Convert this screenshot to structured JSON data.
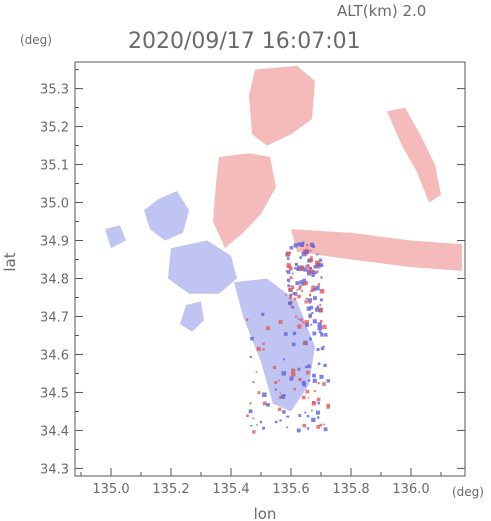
{
  "header": {
    "altitude_label": "ALT(km) 2.0",
    "timestamp": "2020/09/17 16:07:01"
  },
  "axes": {
    "y_unit": "(deg)",
    "x_unit": "(deg)",
    "x_title": "lon",
    "y_title": "lat"
  },
  "colors": {
    "frame": "#555555",
    "text": "#6a6a6a",
    "positive": "#f2a3a3",
    "negative": "#a9b0ef",
    "strong_positive": "#e65a5a",
    "strong_negative": "#5a64e0"
  },
  "chart_data": {
    "type": "heatmap",
    "title": "",
    "xlabel": "lon",
    "ylabel": "lat",
    "xlim": [
      134.88,
      136.18
    ],
    "ylim": [
      34.28,
      35.37
    ],
    "x_ticks": [
      "135.0",
      "135.2",
      "135.4",
      "135.6",
      "135.8",
      "136.0"
    ],
    "y_ticks": [
      "34.3",
      "34.4",
      "34.5",
      "34.6",
      "34.7",
      "34.8",
      "34.9",
      "35.0",
      "35.1",
      "35.2",
      "35.3"
    ],
    "grid": false,
    "regions": [
      {
        "name": "north-positive-plume",
        "sign": "positive",
        "polygon": [
          [
            135.48,
            35.35
          ],
          [
            135.62,
            35.36
          ],
          [
            135.68,
            35.32
          ],
          [
            135.67,
            35.22
          ],
          [
            135.6,
            35.18
          ],
          [
            135.52,
            35.15
          ],
          [
            135.47,
            35.18
          ],
          [
            135.46,
            35.28
          ]
        ]
      },
      {
        "name": "central-positive-band",
        "sign": "positive",
        "polygon": [
          [
            135.36,
            35.12
          ],
          [
            135.46,
            35.13
          ],
          [
            135.53,
            35.12
          ],
          [
            135.55,
            35.04
          ],
          [
            135.5,
            34.97
          ],
          [
            135.44,
            34.92
          ],
          [
            135.38,
            34.88
          ],
          [
            135.34,
            34.95
          ],
          [
            135.35,
            35.05
          ]
        ]
      },
      {
        "name": "east-positive-streak",
        "sign": "positive",
        "polygon": [
          [
            135.6,
            34.93
          ],
          [
            135.8,
            34.92
          ],
          [
            136.0,
            34.9
          ],
          [
            136.17,
            34.89
          ],
          [
            136.17,
            34.82
          ],
          [
            136.0,
            34.83
          ],
          [
            135.8,
            34.85
          ],
          [
            135.62,
            34.87
          ]
        ]
      },
      {
        "name": "northeast-positive-arc",
        "sign": "positive",
        "polygon": [
          [
            135.92,
            35.24
          ],
          [
            135.98,
            35.25
          ],
          [
            136.03,
            35.18
          ],
          [
            136.08,
            35.1
          ],
          [
            136.1,
            35.02
          ],
          [
            136.06,
            35.0
          ],
          [
            136.02,
            35.08
          ],
          [
            135.97,
            35.15
          ]
        ]
      },
      {
        "name": "west-negative-blob",
        "sign": "negative",
        "polygon": [
          [
            135.16,
            35.01
          ],
          [
            135.22,
            35.03
          ],
          [
            135.26,
            34.98
          ],
          [
            135.24,
            34.92
          ],
          [
            135.18,
            34.9
          ],
          [
            135.13,
            34.93
          ],
          [
            135.11,
            34.98
          ]
        ]
      },
      {
        "name": "central-negative-blob",
        "sign": "negative",
        "polygon": [
          [
            135.2,
            34.88
          ],
          [
            135.32,
            34.9
          ],
          [
            135.4,
            34.86
          ],
          [
            135.42,
            34.8
          ],
          [
            135.36,
            34.76
          ],
          [
            135.26,
            34.76
          ],
          [
            135.19,
            34.8
          ]
        ]
      },
      {
        "name": "southwest-negative-blob",
        "sign": "negative",
        "polygon": [
          [
            135.25,
            34.73
          ],
          [
            135.3,
            34.74
          ],
          [
            135.31,
            34.69
          ],
          [
            135.27,
            34.66
          ],
          [
            135.23,
            34.68
          ]
        ]
      },
      {
        "name": "south-negative-plume",
        "sign": "negative",
        "polygon": [
          [
            135.41,
            34.79
          ],
          [
            135.52,
            34.8
          ],
          [
            135.62,
            34.74
          ],
          [
            135.68,
            34.62
          ],
          [
            135.66,
            34.52
          ],
          [
            135.6,
            34.45
          ],
          [
            135.54,
            34.47
          ],
          [
            135.5,
            34.58
          ],
          [
            135.44,
            34.7
          ]
        ]
      },
      {
        "name": "west-small-negative",
        "sign": "negative",
        "polygon": [
          [
            134.98,
            34.93
          ],
          [
            135.03,
            34.94
          ],
          [
            135.05,
            34.9
          ],
          [
            135.0,
            34.88
          ]
        ]
      }
    ]
  }
}
